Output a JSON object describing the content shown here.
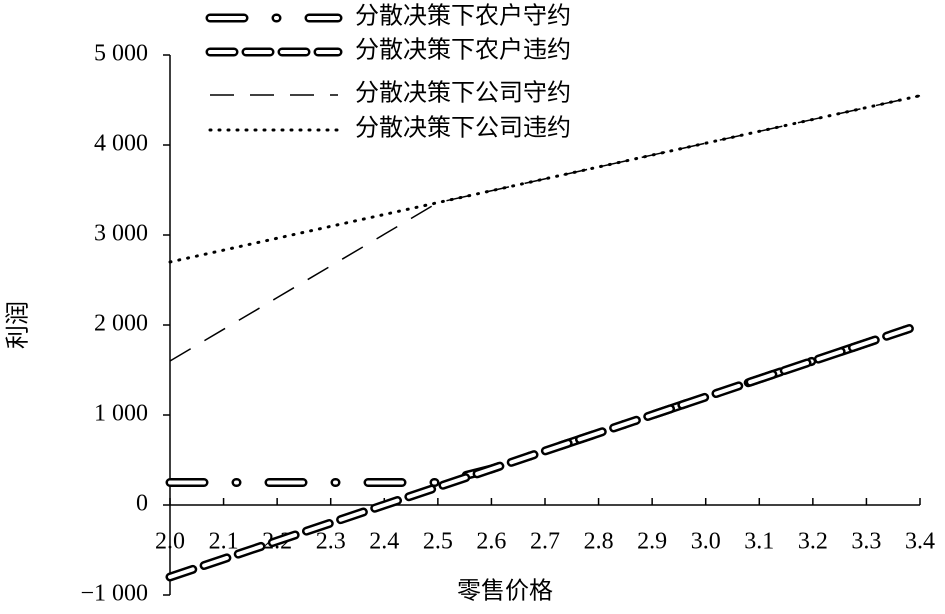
{
  "chart_data": {
    "type": "line",
    "x_label": "零售价格",
    "y_label": "利润",
    "x": [
      2.0,
      2.1,
      2.2,
      2.3,
      2.4,
      2.5,
      2.6,
      2.7,
      2.8,
      2.9,
      3.0,
      3.1,
      3.2,
      3.3,
      3.4
    ],
    "xlim": [
      2.0,
      3.4
    ],
    "xticks": [
      {
        "value": 2.0,
        "label": "2.0"
      },
      2.1,
      2.2,
      2.3,
      2.4,
      2.5,
      2.6,
      2.7,
      2.8,
      2.9,
      {
        "value": 3.0,
        "label": "3.0"
      },
      3.1,
      3.2,
      3.3,
      3.4
    ],
    "ylim": [
      -1000,
      5000
    ],
    "yticks": [
      {
        "value": -1000,
        "label": "−1 000"
      },
      0,
      {
        "value": 1000,
        "label": "1 000"
      },
      {
        "value": 2000,
        "label": "2 000"
      },
      {
        "value": 3000,
        "label": "3 000"
      },
      {
        "value": 4000,
        "label": "4 000"
      },
      {
        "value": 5000,
        "label": "5 000"
      }
    ],
    "series": [
      {
        "name": "分散决策下农户守约",
        "color": "#000000",
        "style": "hollow-dash-dot",
        "values": [
          250,
          250,
          250,
          250,
          250,
          250,
          400,
          600,
          800,
          1000,
          1200,
          1400,
          1600,
          1800,
          2000
        ]
      },
      {
        "name": "分散决策下农户违约",
        "color": "#000000",
        "style": "hollow-dash",
        "values": [
          -800,
          -600,
          -400,
          -200,
          0,
          200,
          400,
          600,
          800,
          1000,
          1200,
          1400,
          1600,
          1800,
          2000
        ]
      },
      {
        "name": "分散决策下公司守约",
        "color": "#000000",
        "style": "dash",
        "values": [
          1600,
          1952,
          2304,
          2656,
          3008,
          3360,
          3492,
          3624,
          3756,
          3888,
          4020,
          4152,
          4284,
          4416,
          4548
        ]
      },
      {
        "name": "分散决策下公司违约",
        "color": "#000000",
        "style": "dot",
        "values": [
          2700,
          2832,
          2964,
          3096,
          3228,
          3360,
          3492,
          3624,
          3756,
          3888,
          4020,
          4152,
          4284,
          4416,
          4548
        ]
      }
    ]
  }
}
